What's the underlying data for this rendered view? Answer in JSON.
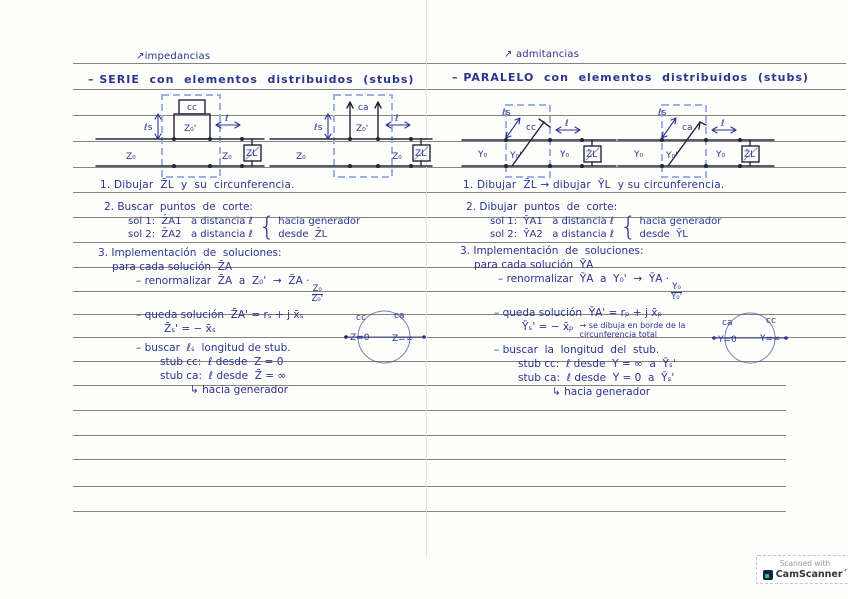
{
  "left": {
    "margin_note": "↗impedancias",
    "title": "– SERIE  con  elementos  distribuidos  (stubs)",
    "step1": "1. Dibujar  Z̄L  y  su  circunferencia.",
    "step2": {
      "heading": "2. Buscar  puntos  de  corte:",
      "sol1": "sol 1:  Z̄A1   a distancia ℓ",
      "sol2": "sol 2:  Z̄A2   a distancia ℓ",
      "brace": "{",
      "opt1": "hacia generador",
      "opt2": "desde  Z̄L"
    },
    "step3": {
      "heading": "3. Implementación  de  soluciones:",
      "intro": "para cada solución  Z̄A",
      "renorm_pre": "– renormalizar  Z̄A  a  Z₀'  →  Z̄A ·",
      "frac_num": "Z₀",
      "frac_den": "Z₀'",
      "solution": "– queda solución  Z̄A' = rₛ + j x̄ₛ",
      "zs": "Z̄ₛ' = − x̄ₛ",
      "buscar": "– buscar  ℓₛ  longitud de stub.",
      "stub_cc": "stub cc:  ℓ desde  Z = 0",
      "stub_ca": "stub ca:  ℓ desde  Z̄ = ∞",
      "nota": "↳ hacia generador",
      "circle": {
        "top_left": "cc",
        "top_right": "ca",
        "axis_left": "Z=0",
        "axis_right": "Z=∞"
      }
    }
  },
  "right": {
    "margin_note": "↗ admitancias",
    "title": "– PARALELO  con  elementos  distribuidos  (stubs)",
    "step1": "1. Dibujar  Z̄L → dibujar  ȲL  y su circunferencia.",
    "step2": {
      "heading": "2. Dibujar  puntos  de  corte:",
      "sol1": "sol 1:  ȲA1   a distancia ℓ",
      "sol2": "sol 2:  ȲA2   a distancia ℓ",
      "brace": "{",
      "opt1": "hacia generador",
      "opt2": "desde  ȲL"
    },
    "step3": {
      "heading": "3. Implementación  de  soluciones:",
      "intro": "para cada solución  ȲA",
      "renorm_pre": "– renormalizar  ȲA  a  Y₀'  →  ȲA ·",
      "frac_num": "Y₀",
      "frac_den": "Y₀'",
      "solution": "– queda solución  ȲA' = rₚ + j x̄ₚ",
      "zs": "Ȳₛ' = − x̄ₚ",
      "zs_note1": "→ se dibuja en borde de la",
      "zs_note2": "circunferencia total",
      "buscar": "– buscar  la  longitud  del  stub.",
      "stub_cc": "stub cc:  ℓ desde  Y = ∞  a  Ȳₛ'",
      "stub_ca": "stub ca:  ℓ desde  Y = 0  a  Ȳₛ'",
      "nota": "↳ hacia generador",
      "circle": {
        "top_left": "ca",
        "top_right": "cc",
        "axis_left": "Y=0",
        "axis_right": "Y=∞"
      }
    }
  },
  "diagrams": {
    "series_cc": {
      "stub": "cc",
      "z0p": "Z₀'",
      "ls": "ℓs",
      "len": "ℓ",
      "line_left": "Z₀",
      "line_right": "Z₀",
      "load": "ZL"
    },
    "series_ca": {
      "stub": "ca",
      "z0p": "Z₀'",
      "ls": "ℓs",
      "len": "ℓ",
      "line_left": "Z₀",
      "line_right": "Z₀",
      "load": "ZL"
    },
    "parallel_cc": {
      "stub": "cc",
      "y0p": "Y₀'",
      "ls": "ℓs",
      "len": "ℓ",
      "line_left": "Y₀",
      "line_right": "Y₀",
      "load": "Z̄L"
    },
    "parallel_ca": {
      "stub": "ca",
      "y0p": "Y₀'",
      "ls": "ℓs",
      "len": "ℓ",
      "line_left": "Y₀",
      "line_right": "Y₀",
      "load": "Z̄L"
    }
  },
  "badge": {
    "line1": "Scanned with",
    "line2": "CamScanner´"
  }
}
